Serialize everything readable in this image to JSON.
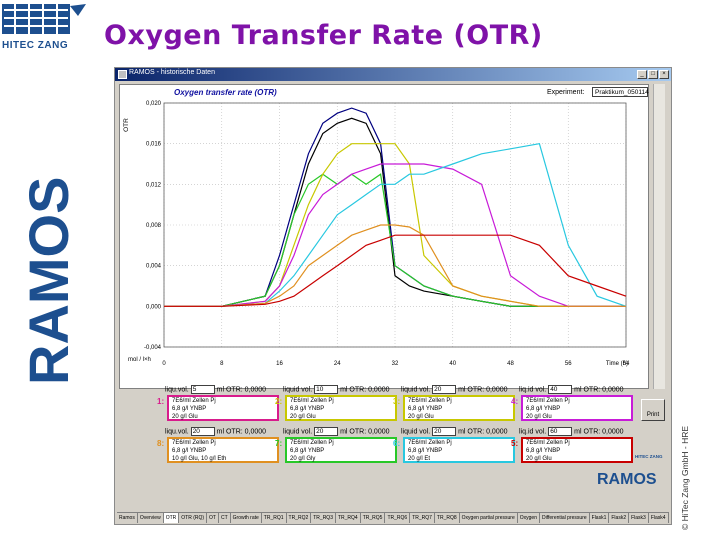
{
  "slide": {
    "title": "Oxygen Transfer Rate (OTR)",
    "logo_text": "HITEC ZANG",
    "side_brand": "RAMOS",
    "copyright": "© HiTec Zang GmbH - HRE"
  },
  "window": {
    "title": "RAMOS - historische Daten",
    "minimize": "_",
    "maximize": "□",
    "close": "×"
  },
  "colors": {
    "accent": "#7f12a8",
    "brand_blue": "#1d4f8f",
    "flask1": "#d81b8c",
    "flask2": "#c8c800",
    "flask3": "#c8c800",
    "flask4": "#c81bd8",
    "flask5": "#c80000",
    "flask6": "#28c8e0",
    "flask7": "#28c828",
    "flask8": "#e09020"
  },
  "chart_data": {
    "type": "line",
    "title": "Oxygen transfer rate (OTR)",
    "ylabel": "OTR",
    "xlabel": "Time (h)",
    "y_unit": "mol / l×h",
    "ylim": [
      -0.004,
      0.02
    ],
    "xlim": [
      0,
      64
    ],
    "yticks": [
      "0,020",
      "0,016",
      "0,012",
      "0,008",
      "0,004",
      "0,000",
      "-0,004"
    ],
    "xticks": [
      "0",
      "8",
      "16",
      "24",
      "32",
      "40",
      "48",
      "56",
      "64"
    ],
    "grid": true,
    "series": [
      {
        "color": "#000080",
        "x": [
          0,
          8,
          14,
          16,
          18,
          20,
          22,
          24,
          26,
          28,
          30,
          32,
          34,
          36,
          40,
          44,
          48,
          52,
          56,
          60,
          64
        ],
        "y": [
          0,
          0,
          0.001,
          0.005,
          0.01,
          0.015,
          0.018,
          0.019,
          0.0195,
          0.019,
          0.016,
          0.004,
          0.003,
          0.002,
          0.001,
          0.0005,
          0,
          0,
          0,
          0,
          0
        ]
      },
      {
        "color": "#000000",
        "x": [
          0,
          8,
          14,
          16,
          18,
          20,
          22,
          24,
          26,
          28,
          30,
          32,
          34,
          36,
          40,
          44,
          48,
          52,
          56,
          60,
          64
        ],
        "y": [
          0,
          0,
          0.001,
          0.004,
          0.009,
          0.014,
          0.017,
          0.018,
          0.0185,
          0.018,
          0.015,
          0.003,
          0.002,
          0.0015,
          0.001,
          0.0005,
          0,
          0,
          0,
          0,
          0
        ]
      },
      {
        "color": "#28c828",
        "x": [
          0,
          8,
          14,
          16,
          18,
          20,
          22,
          24,
          26,
          28,
          30,
          32,
          34,
          36,
          40,
          44,
          48,
          52,
          56,
          60,
          64
        ],
        "y": [
          0,
          0,
          0.001,
          0.004,
          0.009,
          0.012,
          0.013,
          0.012,
          0.013,
          0.012,
          0.013,
          0.004,
          0.003,
          0.002,
          0.001,
          0.0005,
          0,
          0,
          0,
          0,
          0
        ]
      },
      {
        "color": "#c8c800",
        "x": [
          0,
          8,
          14,
          16,
          18,
          20,
          22,
          24,
          26,
          28,
          30,
          32,
          34,
          36,
          40,
          44,
          48,
          52,
          56,
          60,
          64
        ],
        "y": [
          0,
          0,
          0.0005,
          0.002,
          0.006,
          0.01,
          0.013,
          0.015,
          0.016,
          0.016,
          0.016,
          0.016,
          0.014,
          0.005,
          0.002,
          0.001,
          0.0005,
          0,
          0,
          0,
          0
        ]
      },
      {
        "color": "#c81bd8",
        "x": [
          0,
          8,
          14,
          16,
          18,
          20,
          22,
          24,
          26,
          28,
          30,
          32,
          34,
          36,
          40,
          44,
          48,
          52,
          56,
          60,
          64
        ],
        "y": [
          0,
          0,
          0.0005,
          0.002,
          0.005,
          0.009,
          0.011,
          0.012,
          0.013,
          0.0135,
          0.014,
          0.014,
          0.014,
          0.014,
          0.0135,
          0.012,
          0.003,
          0.001,
          0,
          0,
          0
        ]
      },
      {
        "color": "#28c8e0",
        "x": [
          0,
          8,
          14,
          16,
          18,
          20,
          22,
          24,
          26,
          28,
          30,
          32,
          34,
          36,
          40,
          44,
          48,
          52,
          56,
          60,
          64
        ],
        "y": [
          0,
          0,
          0.0003,
          0.0015,
          0.003,
          0.005,
          0.007,
          0.009,
          0.01,
          0.011,
          0.012,
          0.012,
          0.013,
          0.013,
          0.014,
          0.015,
          0.0155,
          0.016,
          0.006,
          0.001,
          0
        ]
      },
      {
        "color": "#e09020",
        "x": [
          0,
          8,
          14,
          16,
          18,
          20,
          22,
          24,
          26,
          28,
          30,
          32,
          34,
          36,
          40,
          44,
          48,
          52,
          56,
          60,
          64
        ],
        "y": [
          0,
          0,
          0.0003,
          0.001,
          0.002,
          0.004,
          0.005,
          0.006,
          0.007,
          0.0075,
          0.008,
          0.008,
          0.0078,
          0.007,
          0.002,
          0.001,
          0.0005,
          0,
          0,
          0,
          0
        ]
      },
      {
        "color": "#c80000",
        "x": [
          0,
          8,
          14,
          16,
          18,
          20,
          22,
          24,
          26,
          28,
          30,
          32,
          34,
          36,
          40,
          44,
          48,
          52,
          56,
          60,
          64
        ],
        "y": [
          0,
          0,
          0.0002,
          0.0005,
          0.001,
          0.002,
          0.003,
          0.004,
          0.005,
          0.006,
          0.0065,
          0.007,
          0.007,
          0.007,
          0.007,
          0.007,
          0.007,
          0.006,
          0.003,
          0.002,
          0.001
        ]
      }
    ]
  },
  "experiment": {
    "label": "Experiment:",
    "value": "Praktikum_050114"
  },
  "liquid_rows": [
    {
      "label": "liqu.vol.",
      "value": "5",
      "unit": "ml",
      "otr_label": "OTR:",
      "otr_value": "0,0000"
    },
    {
      "label": "liquid vol.",
      "value": "10",
      "unit": "ml",
      "otr_label": "OTR:",
      "otr_value": "0,0000"
    },
    {
      "label": "liquid vol.",
      "value": "20",
      "unit": "ml",
      "otr_label": "OTR:",
      "otr_value": "0,0000"
    },
    {
      "label": "liq.id vol.",
      "value": "40",
      "unit": "ml",
      "otr_label": "OTR:",
      "otr_value": "0,0000"
    },
    {
      "label": "liqu.vol.",
      "value": "20",
      "unit": "ml",
      "otr_label": "OTR:",
      "otr_value": "0,0000"
    },
    {
      "label": "liquid vol.",
      "value": "20",
      "unit": "ml",
      "otr_label": "OTR:",
      "otr_value": "0,0000"
    },
    {
      "label": "liquid vol.",
      "value": "20",
      "unit": "ml",
      "otr_label": "OTR:",
      "otr_value": "0,0000"
    },
    {
      "label": "liq.id vol.",
      "value": "60",
      "unit": "ml",
      "otr_label": "OTR:",
      "otr_value": "0,0000"
    }
  ],
  "flasks": [
    {
      "num": "1:",
      "lines": [
        "7E6/ml Zellen Pj",
        "6,8 g/l YNBP",
        "20 g/l Glu"
      ]
    },
    {
      "num": "2:",
      "lines": [
        "7E6/ml Zellen Pj",
        "6,8 g/l YNBP",
        "20 g/l Glu"
      ]
    },
    {
      "num": "3:",
      "lines": [
        "7E6/ml Zellen Pj",
        "6,8 g/l YNBP",
        "20 g/l Glu"
      ]
    },
    {
      "num": "4:",
      "lines": [
        "7E6/ml Zellen Pj",
        "6,8 g/l YNBP",
        "20 g/l Glu"
      ]
    },
    {
      "num": "8:",
      "lines": [
        "7E6/ml Zellen Pj",
        "6,8 g/l YNBP",
        "10 g/l Glu, 10 g/l Eth"
      ]
    },
    {
      "num": "7:",
      "lines": [
        "7E6/ml Zellen Pj",
        "6,8 g/l YNBP",
        "20 g/l Gly"
      ]
    },
    {
      "num": "6:",
      "lines": [
        "7E6/ml Zellen Pj",
        "6,8 g/l YNBP",
        "20 g/l Et"
      ]
    },
    {
      "num": "5:",
      "lines": [
        "7E6/ml Zellen Pj",
        "6,8 g/l YNBP",
        "20 g/l Glu"
      ]
    }
  ],
  "print_label": "Print",
  "mini_brand": "RAMOS",
  "mini_logo_text": "HITEC ZANG",
  "tabs": [
    "Ramos",
    "Overview",
    "OTR",
    "OTR (RQ)",
    "OT",
    "CT",
    "Growth rate",
    "TR_RQ1",
    "TR_RQ2",
    "TR_RQ3",
    "TR_RQ4",
    "TR_RQ5",
    "TR_RQ6",
    "TR_RQ7",
    "TR_RQ8",
    "Oxygen partial pressure",
    "Oxygen",
    "Differential pressure",
    "Flask1",
    "Flask2",
    "Flask3",
    "Flask4",
    "Flask5",
    "Flask6",
    "Flask7",
    "Flask8"
  ]
}
